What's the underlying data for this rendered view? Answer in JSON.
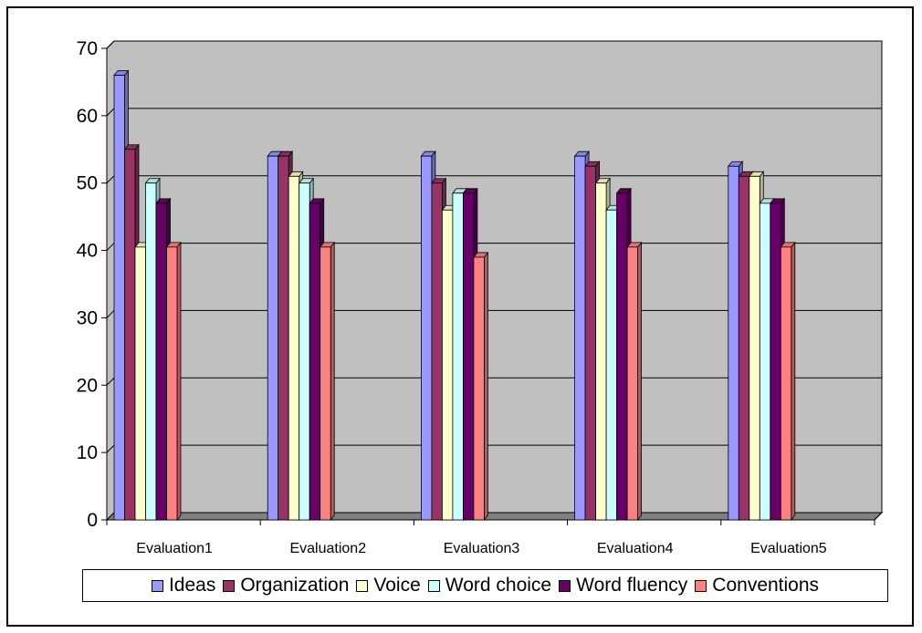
{
  "chart_data": {
    "type": "bar",
    "style": "3d-clustered-column",
    "categories": [
      "Evaluation1",
      "Evaluation2",
      "Evaluation3",
      "Evaluation4",
      "Evaluation5"
    ],
    "series": [
      {
        "name": "Ideas",
        "color": "#9999ff",
        "values": [
          66,
          54,
          54,
          54,
          52.5
        ]
      },
      {
        "name": "Organization",
        "color": "#993366",
        "values": [
          55,
          54,
          50,
          52.5,
          51
        ]
      },
      {
        "name": "Voice",
        "color": "#ffffcc",
        "values": [
          40.5,
          51,
          46,
          50,
          51
        ]
      },
      {
        "name": "Word choice",
        "color": "#ccffff",
        "values": [
          50,
          50,
          48.5,
          46,
          47
        ]
      },
      {
        "name": "Word fluency",
        "color": "#660066",
        "values": [
          47,
          47,
          48.5,
          48.5,
          47
        ]
      },
      {
        "name": "Conventions",
        "color": "#ff8080",
        "values": [
          40.5,
          40.5,
          39,
          40.5,
          40.5
        ]
      }
    ],
    "ylim": [
      0,
      70
    ],
    "yticks": [
      0,
      10,
      20,
      30,
      40,
      50,
      60,
      70
    ],
    "grid": true,
    "legend_position": "bottom",
    "plot_background": "#c0c0c0"
  }
}
